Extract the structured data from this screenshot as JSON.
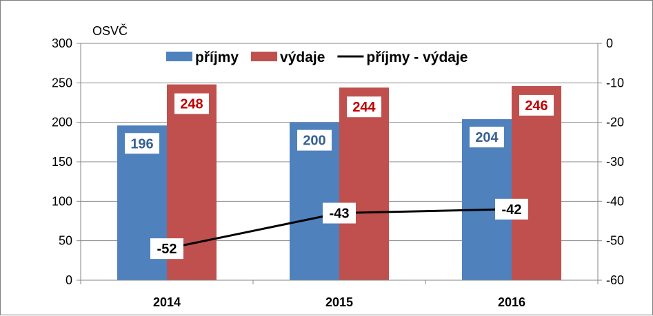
{
  "chart_data": {
    "type": "bar",
    "unit_label": "OSVČ",
    "categories": [
      "2014",
      "2015",
      "2016"
    ],
    "series": [
      {
        "name": "příjmy",
        "values": [
          196,
          200,
          204
        ],
        "color": "#4F81BD",
        "label_color": "#376092",
        "axis": "left"
      },
      {
        "name": "výdaje",
        "values": [
          248,
          244,
          246
        ],
        "color": "#C0504D",
        "label_color": "#C00000",
        "axis": "left"
      },
      {
        "name": "příjmy - výdaje",
        "type": "line",
        "values": [
          -52,
          -43,
          -42
        ],
        "color": "#000000",
        "label_color": "#000000",
        "axis": "right"
      }
    ],
    "y_left": {
      "min": 0,
      "max": 300,
      "step": 50
    },
    "y_right": {
      "min": -60,
      "max": 0,
      "step": 10
    },
    "grid": true,
    "legend_position": "top"
  }
}
